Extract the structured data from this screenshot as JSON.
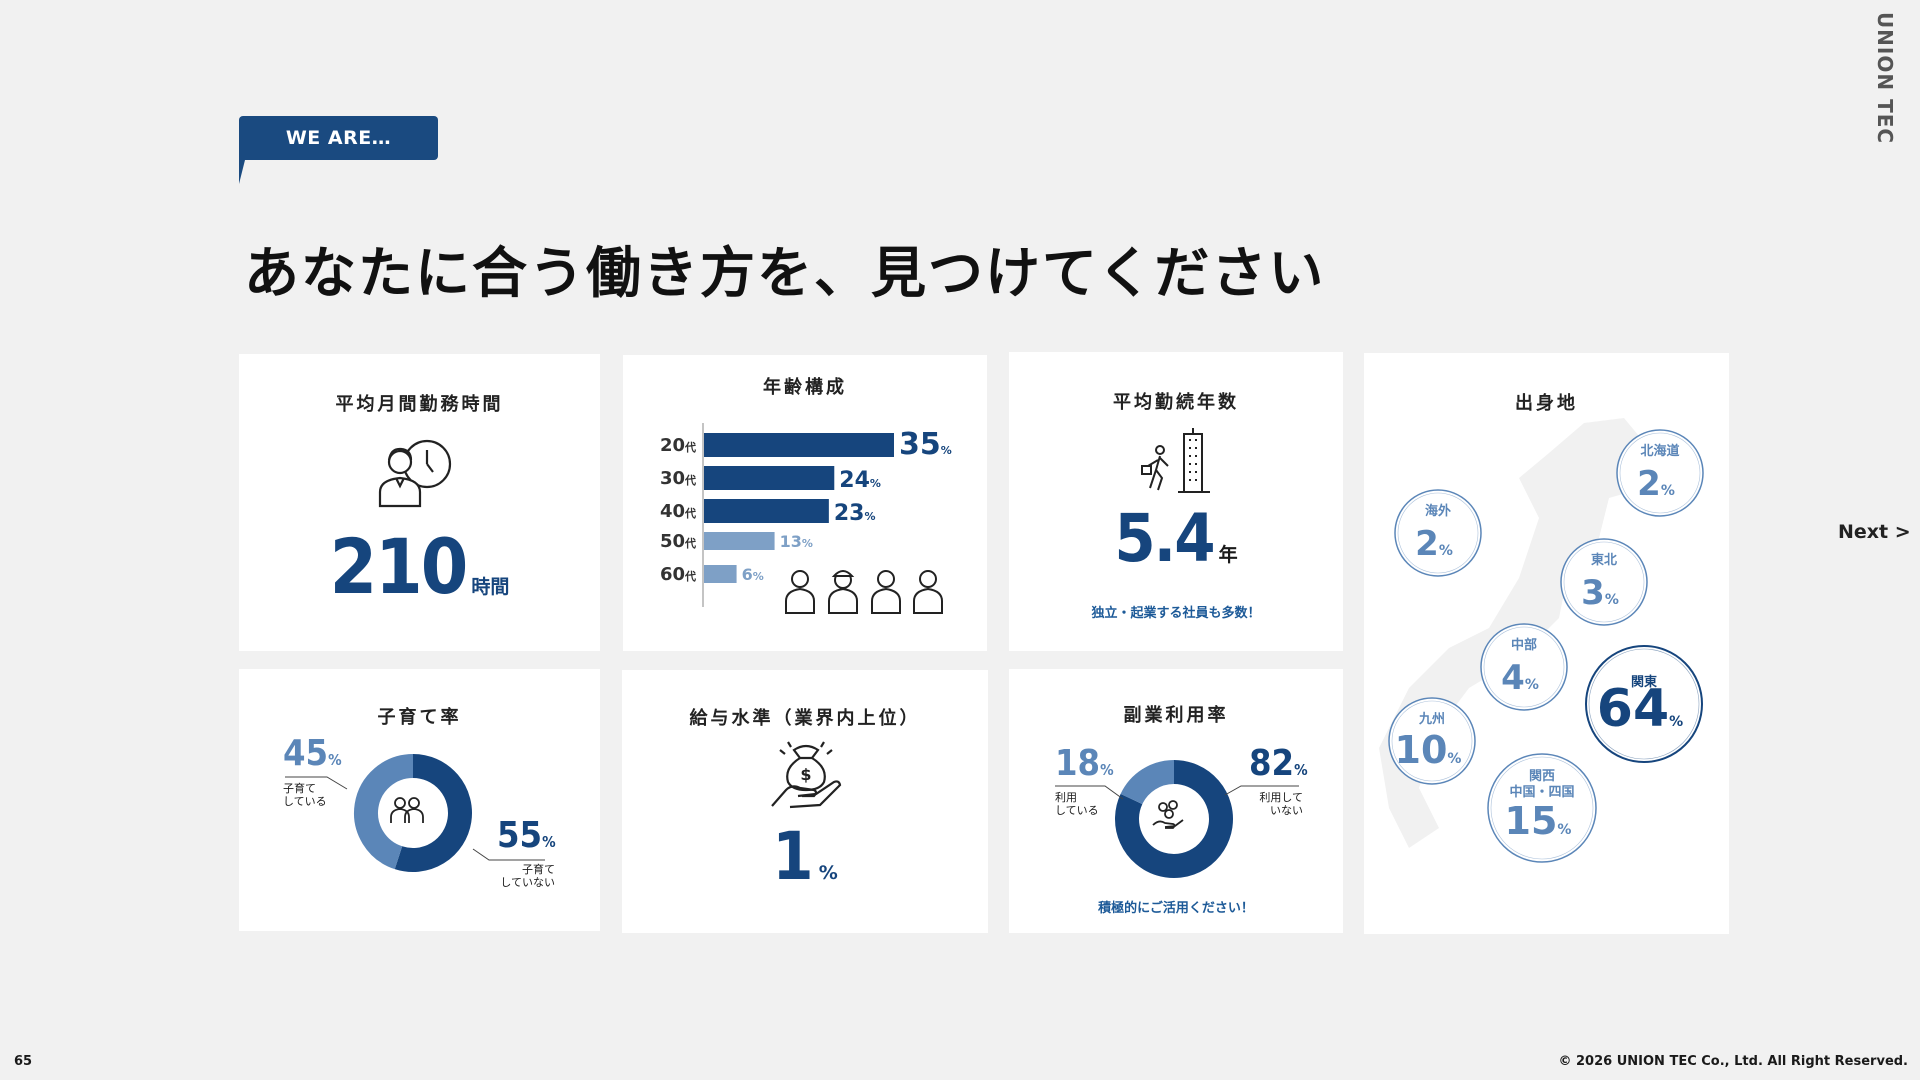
{
  "header": {
    "tag_label": "WE ARE…",
    "headline": "あなたに合う働き方を、見つけてください",
    "brand": "UNION TEC"
  },
  "nav": {
    "next_label": "Next"
  },
  "footer": {
    "page_number": "65",
    "copyright": "© 2026 UNION TEC Co., Ltd. All Right Reserved."
  },
  "colors": {
    "navy": "#16457d",
    "mid_blue": "#5b86b8",
    "light_blue": "#7ea0c6",
    "tag_bg": "#1a4a80",
    "background": "#f1f1f1"
  },
  "cards": {
    "work_hours": {
      "title": "平均月間勤務時間",
      "value": "210",
      "unit": "時間",
      "icon": "worker-clock-icon"
    },
    "age": {
      "title": "年齢構成",
      "unit_suffix": "代",
      "percent_suffix": "%",
      "icon": "staff-group-icon"
    },
    "tenure": {
      "title": "平均勤続年数",
      "value": "5.4",
      "unit": "年",
      "note": "独立・起業する社員も多数！",
      "icon": "commuter-building-icon"
    },
    "hometown": {
      "title": "出身地",
      "percent_suffix": "%",
      "regions": [
        {
          "name": "北海道",
          "value": "2"
        },
        {
          "name": "海外",
          "value": "2"
        },
        {
          "name": "東北",
          "value": "3"
        },
        {
          "name": "中部",
          "value": "4"
        },
        {
          "name": "関東",
          "value": "64"
        },
        {
          "name": "九州",
          "value": "10"
        },
        {
          "name": "関西\n中国・四国",
          "value": "15"
        }
      ]
    },
    "parenting": {
      "title": "子育て率",
      "icon": "family-icon",
      "raising": {
        "value": "45",
        "label_line1": "子育て",
        "label_line2": "している"
      },
      "not_raising": {
        "value": "55",
        "label_line1": "子育て",
        "label_line2": "していない"
      }
    },
    "salary": {
      "title": "給与水準（業界内上位）",
      "value": "1",
      "unit": "%",
      "icon": "money-bag-hand-icon"
    },
    "side_job": {
      "title": "副業利用率",
      "icon": "coins-hand-icon",
      "using": {
        "value": "18",
        "label_line1": "利用",
        "label_line2": "している"
      },
      "not_using": {
        "value": "82",
        "label_line1": "利用して",
        "label_line2": "いない"
      },
      "note": "積極的にご活用ください！"
    }
  },
  "chart_data": [
    {
      "type": "bar",
      "title": "年齢構成",
      "categories": [
        "20",
        "30",
        "40",
        "50",
        "60"
      ],
      "values": [
        35,
        24,
        23,
        13,
        6
      ]
    },
    {
      "type": "pie",
      "title": "子育て率",
      "categories": [
        "子育てしている",
        "子育てしていない"
      ],
      "values": [
        45,
        55
      ]
    },
    {
      "type": "pie",
      "title": "副業利用率",
      "categories": [
        "利用している",
        "利用していない"
      ],
      "values": [
        18,
        82
      ]
    },
    {
      "type": "table",
      "title": "出身地",
      "categories": [
        "北海道",
        "海外",
        "東北",
        "中部",
        "関東",
        "九州",
        "関西 中国・四国"
      ],
      "values": [
        2,
        2,
        3,
        4,
        64,
        10,
        15
      ]
    }
  ]
}
